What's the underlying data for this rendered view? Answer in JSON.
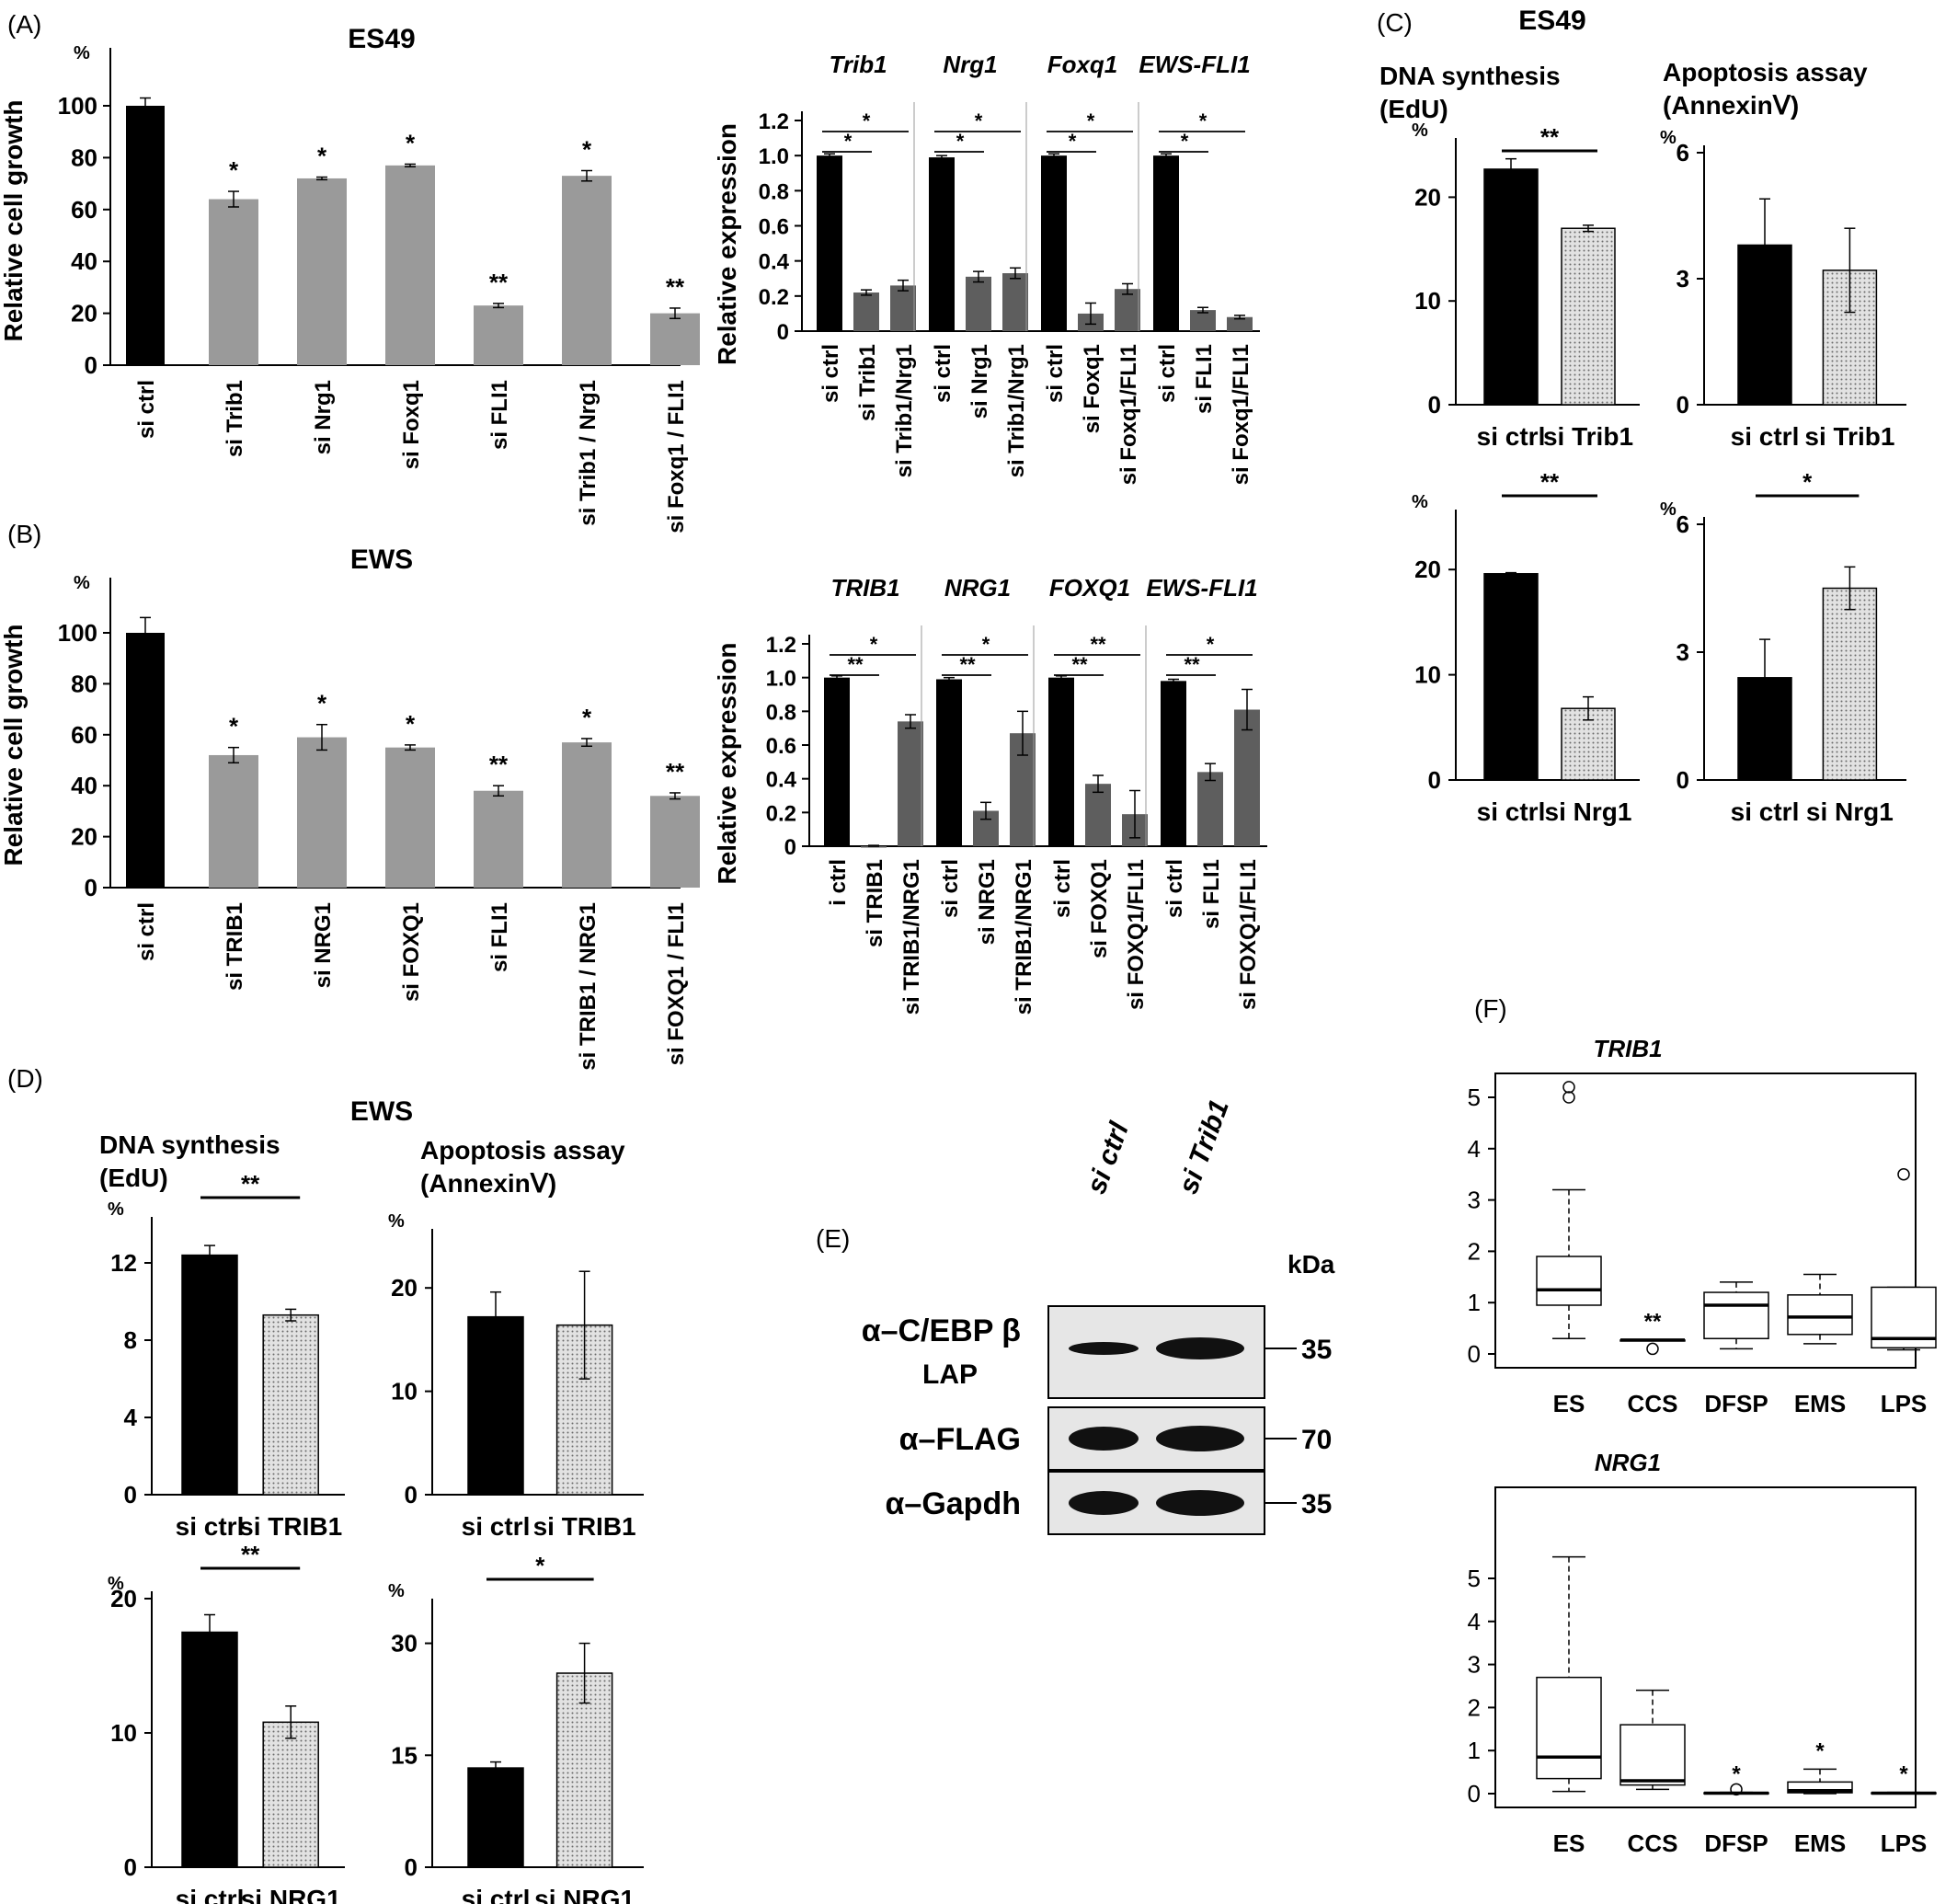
{
  "colors": {
    "black": "#000000",
    "gray": "#9a9a9a",
    "darkgray": "#5e5e5e",
    "dotted": "#d4d4d4"
  },
  "panels": {
    "A": "(A)",
    "B": "(B)",
    "C": "(C)",
    "D": "(D)",
    "E": "(E)",
    "F": "(F)"
  },
  "chart_data": [
    {
      "id": "A_growth",
      "panel": "A",
      "type": "bar",
      "title": "ES49",
      "ylabel": "Relative cell growth",
      "unit": "%",
      "ylim": [
        0,
        100
      ],
      "yticks": [
        0,
        20,
        40,
        60,
        80,
        100
      ],
      "categories": [
        "si ctrl",
        "si Trib1",
        "si Nrg1",
        "si Foxq1",
        "si FLI1",
        "si Trib1 / Nrg1",
        "si Foxq1 / FLI1"
      ],
      "values": [
        100,
        64,
        72,
        77,
        23,
        73,
        20
      ],
      "errors": [
        3,
        3,
        0.5,
        0.5,
        0.8,
        2,
        2
      ],
      "sig": [
        "",
        "*",
        "*",
        "*",
        "**",
        "*",
        "**"
      ]
    },
    {
      "id": "A_expr",
      "panel": "A",
      "type": "bar",
      "ylabel": "Relative expression",
      "ylim": [
        0,
        1.2
      ],
      "yticks": [
        "0",
        "0.2",
        "0.4",
        "0.6",
        "0.8",
        "1.0",
        "1.2"
      ],
      "groups": [
        {
          "gene": "Trib1",
          "labels": [
            "si ctrl",
            "si Trib1",
            "si Trib1/Nrg1"
          ],
          "values": [
            1.0,
            0.22,
            0.26
          ],
          "errors": [
            0.01,
            0.015,
            0.03
          ],
          "brackets": [
            "*",
            "*"
          ]
        },
        {
          "gene": "Nrg1",
          "labels": [
            "si ctrl",
            "si Nrg1",
            "si Trib1/Nrg1"
          ],
          "values": [
            0.99,
            0.31,
            0.33
          ],
          "errors": [
            0.01,
            0.03,
            0.03
          ],
          "brackets": [
            "*",
            "*"
          ]
        },
        {
          "gene": "Foxq1",
          "labels": [
            "si ctrl",
            "si Foxq1",
            "si Foxq1/FLI1"
          ],
          "values": [
            1.0,
            0.1,
            0.24
          ],
          "errors": [
            0.01,
            0.06,
            0.03
          ],
          "brackets": [
            "*",
            "*"
          ]
        },
        {
          "gene": "EWS-FLI1",
          "labels": [
            "si ctrl",
            "si FLI1",
            "si Foxq1/FLI1"
          ],
          "values": [
            1.0,
            0.12,
            0.08
          ],
          "errors": [
            0.01,
            0.015,
            0.01
          ],
          "brackets": [
            "*",
            "*"
          ]
        }
      ]
    },
    {
      "id": "B_growth",
      "panel": "B",
      "type": "bar",
      "title": "EWS",
      "ylabel": "Relative cell growth",
      "unit": "%",
      "ylim": [
        0,
        100
      ],
      "yticks": [
        0,
        20,
        40,
        60,
        80,
        100
      ],
      "categories": [
        "si ctrl",
        "si TRIB1",
        "si NRG1",
        "si FOXQ1",
        "si FLI1",
        "si TRIB1 / NRG1",
        "si FOXQ1 / FLI1"
      ],
      "values": [
        100,
        52,
        59,
        55,
        38,
        57,
        36
      ],
      "errors": [
        6,
        3,
        5,
        1,
        2,
        1.5,
        1.2
      ],
      "sig": [
        "",
        "*",
        "*",
        "*",
        "**",
        "*",
        "**"
      ]
    },
    {
      "id": "B_expr",
      "panel": "B",
      "type": "bar",
      "ylabel": "Relative expression",
      "ylim": [
        0,
        1.2
      ],
      "yticks": [
        "0",
        "0.2",
        "0.4",
        "0.6",
        "0.8",
        "1.0",
        "1.2"
      ],
      "groups": [
        {
          "gene": "TRIB1",
          "labels": [
            "i ctrl",
            "si TRIB1",
            "si TRIB1/NRG1"
          ],
          "values": [
            1.0,
            0.0,
            0.74
          ],
          "errors": [
            0.01,
            0.005,
            0.04
          ],
          "brackets": [
            "**",
            "*"
          ]
        },
        {
          "gene": "NRG1",
          "labels": [
            "si ctrl",
            "si NRG1",
            "si TRIB1/NRG1"
          ],
          "values": [
            0.99,
            0.21,
            0.67
          ],
          "errors": [
            0.01,
            0.05,
            0.13
          ],
          "brackets": [
            "**",
            "*"
          ]
        },
        {
          "gene": "FOXQ1",
          "labels": [
            "si ctrl",
            "si FOXQ1",
            "si FOXQ1/FLI1"
          ],
          "values": [
            1.0,
            0.37,
            0.19
          ],
          "errors": [
            0.01,
            0.05,
            0.14
          ],
          "brackets": [
            "**",
            "**"
          ]
        },
        {
          "gene": "EWS-FLI1",
          "labels": [
            "si ctrl",
            "si FLI1",
            "si FOXQ1/FLI1"
          ],
          "values": [
            0.98,
            0.44,
            0.81
          ],
          "errors": [
            0.01,
            0.05,
            0.12
          ],
          "brackets": [
            "**",
            "*"
          ]
        }
      ]
    },
    {
      "id": "C_edu_trib1",
      "panel": "C",
      "type": "bar",
      "title": "ES49",
      "subtitle": "DNA synthesis (EdU)",
      "unit": "%",
      "ylim": [
        0,
        25
      ],
      "yticks": [
        0,
        10,
        20
      ],
      "categories": [
        "si ctrl",
        "si Trib1"
      ],
      "values": [
        22.7,
        17.0
      ],
      "errors": [
        1.0,
        0.3
      ],
      "sig": "**"
    },
    {
      "id": "C_apo_trib1",
      "panel": "C",
      "type": "bar",
      "subtitle": "Apoptosis assay (AnnexinⅤ)",
      "unit": "%",
      "ylim": [
        0,
        6
      ],
      "yticks": [
        0,
        3,
        6
      ],
      "categories": [
        "si ctrl",
        "si Trib1"
      ],
      "values": [
        3.8,
        3.2
      ],
      "errors": [
        1.1,
        1.0
      ],
      "sig": ""
    },
    {
      "id": "C_edu_nrg1",
      "panel": "C",
      "type": "bar",
      "unit": "%",
      "ylim": [
        0,
        25
      ],
      "yticks": [
        0,
        10,
        20
      ],
      "categories": [
        "si ctrl",
        "si Nrg1"
      ],
      "values": [
        19.6,
        6.8
      ],
      "errors": [
        0.1,
        1.1
      ],
      "sig": "**"
    },
    {
      "id": "C_apo_nrg1",
      "panel": "C",
      "type": "bar",
      "unit": "%",
      "ylim": [
        0,
        6
      ],
      "yticks": [
        0,
        3,
        6
      ],
      "categories": [
        "si ctrl",
        "si Nrg1"
      ],
      "values": [
        2.4,
        4.5
      ],
      "errors": [
        0.9,
        0.5
      ],
      "sig": "*"
    },
    {
      "id": "D_edu_trib1",
      "panel": "D",
      "type": "bar",
      "title": "EWS",
      "subtitle": "DNA synthesis (EdU)",
      "unit": "%",
      "ylim": [
        0,
        14
      ],
      "yticks": [
        0,
        4,
        8,
        12
      ],
      "categories": [
        "si ctrl",
        "si TRIB1"
      ],
      "values": [
        12.4,
        9.3
      ],
      "errors": [
        0.5,
        0.3
      ],
      "sig": "**"
    },
    {
      "id": "D_apo_trib1",
      "panel": "D",
      "type": "bar",
      "subtitle": "Apoptosis assay (AnnexinⅤ)",
      "unit": "%",
      "ylim": [
        0,
        25
      ],
      "yticks": [
        0,
        10,
        20
      ],
      "categories": [
        "si ctrl",
        "si TRIB1"
      ],
      "values": [
        17.2,
        16.4
      ],
      "errors": [
        2.4,
        5.2
      ],
      "sig": ""
    },
    {
      "id": "D_edu_nrg1",
      "panel": "D",
      "type": "bar",
      "unit": "%",
      "ylim": [
        0,
        20
      ],
      "yticks": [
        0,
        10,
        20
      ],
      "categories": [
        "si ctrl",
        "si NRG1"
      ],
      "values": [
        17.5,
        10.8
      ],
      "errors": [
        1.3,
        1.2
      ],
      "sig": "**"
    },
    {
      "id": "D_apo_nrg1",
      "panel": "D",
      "type": "bar",
      "unit": "%",
      "ylim": [
        0,
        35
      ],
      "yticks": [
        0,
        15,
        30
      ],
      "categories": [
        "si ctrl",
        "si NRG1"
      ],
      "values": [
        13.3,
        26.0
      ],
      "errors": [
        0.8,
        4.0
      ],
      "sig": "*"
    },
    {
      "id": "F_trib1",
      "panel": "F",
      "type": "boxplot",
      "title": "TRIB1",
      "ylim": [
        0,
        5.5
      ],
      "yticks": [
        0,
        1,
        2,
        3,
        4,
        5
      ],
      "categories": [
        "ES",
        "CCS",
        "DFSP",
        "EMS",
        "LPS"
      ],
      "boxes": [
        {
          "min": 0.3,
          "q1": 0.95,
          "median": 1.25,
          "q3": 1.9,
          "max": 3.2,
          "outliers": [
            5.0,
            5.2
          ],
          "sig": ""
        },
        {
          "min": 0.26,
          "q1": 0.26,
          "median": 0.27,
          "q3": 0.27,
          "max": 0.28,
          "outliers": [
            0.1
          ],
          "sig": "**"
        },
        {
          "min": 0.1,
          "q1": 0.3,
          "median": 0.95,
          "q3": 1.2,
          "max": 1.4,
          "outliers": [],
          "sig": ""
        },
        {
          "min": 0.2,
          "q1": 0.38,
          "median": 0.72,
          "q3": 1.15,
          "max": 1.55,
          "outliers": [],
          "sig": ""
        },
        {
          "min": 0.08,
          "q1": 0.12,
          "median": 0.3,
          "q3": 1.3,
          "max": 1.3,
          "outliers": [
            3.5
          ],
          "sig": ""
        }
      ]
    },
    {
      "id": "F_nrg1",
      "panel": "F",
      "type": "boxplot",
      "title": "NRG1",
      "ylim": [
        0,
        5.5
      ],
      "yticks": [
        0,
        1,
        2,
        3,
        4,
        5
      ],
      "categories": [
        "ES",
        "CCS",
        "DFSP",
        "EMS",
        "LPS"
      ],
      "boxes": [
        {
          "min": 0.05,
          "q1": 0.35,
          "median": 0.85,
          "q3": 2.7,
          "max": 5.5,
          "outliers": [],
          "sig": ""
        },
        {
          "min": 0.1,
          "q1": 0.2,
          "median": 0.3,
          "q3": 1.6,
          "max": 2.4,
          "outliers": [],
          "sig": ""
        },
        {
          "min": 0.0,
          "q1": 0.0,
          "median": 0.01,
          "q3": 0.02,
          "max": 0.03,
          "outliers": [
            0.1
          ],
          "sig": "*"
        },
        {
          "min": 0.0,
          "q1": 0.02,
          "median": 0.07,
          "q3": 0.27,
          "max": 0.57,
          "outliers": [],
          "sig": "*"
        },
        {
          "min": 0.0,
          "q1": 0.0,
          "median": 0.01,
          "q3": 0.02,
          "max": 0.03,
          "outliers": [],
          "sig": "*"
        }
      ]
    }
  ],
  "western": {
    "lanes": [
      "si ctrl",
      "si Trib1"
    ],
    "kda_label": "kDa",
    "rows": [
      {
        "label": "α–C/EBP β",
        "sublabel": "LAP",
        "kda": "35"
      },
      {
        "label": "α–FLAG",
        "sublabel": "",
        "kda": "70"
      },
      {
        "label": "α–Gapdh",
        "sublabel": "",
        "kda": "35"
      }
    ]
  }
}
